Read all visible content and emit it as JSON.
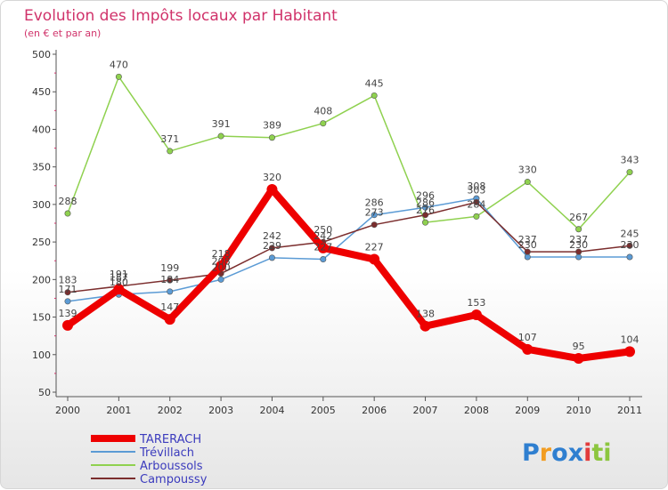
{
  "chart_data": {
    "type": "line",
    "title": "Evolution des Impôts locaux par Habitant",
    "subtitle": "(en € et par an)",
    "xlabel": "",
    "ylabel": "",
    "x": [
      "2000",
      "2001",
      "2002",
      "2003",
      "2004",
      "2005",
      "2006",
      "2007",
      "2008",
      "2009",
      "2010",
      "2011"
    ],
    "ylim": [
      50,
      500
    ],
    "yticks": [
      50,
      100,
      150,
      200,
      250,
      300,
      350,
      400,
      450,
      500
    ],
    "series": [
      {
        "name": "Arboussols",
        "color": "#8fd14f",
        "values": [
          288,
          470,
          371,
          391,
          389,
          408,
          445,
          276,
          284,
          330,
          267,
          343
        ]
      },
      {
        "name": "Trévillach",
        "color": "#5b9bd5",
        "values": [
          171,
          180,
          184,
          200,
          229,
          227,
          286,
          296,
          308,
          230,
          230,
          230
        ]
      },
      {
        "name": "Campoussy",
        "color": "#7b2d2d",
        "values": [
          183,
          191,
          199,
          208,
          242,
          250,
          273,
          286,
          303,
          237,
          237,
          245
        ]
      },
      {
        "name": "TARERACH",
        "color": "#ee0000",
        "values": [
          139,
          187,
          147,
          218,
          320,
          242,
          227,
          138,
          153,
          107,
          95,
          104
        ]
      }
    ],
    "legend_order": [
      "TARERACH",
      "Trévillach",
      "Arboussols",
      "Campoussy"
    ],
    "legend_position": "bottom-left",
    "grid": false
  },
  "logo": {
    "letters": [
      "P",
      "r",
      "o",
      "x",
      "i",
      "t",
      "i"
    ],
    "colors": [
      "#2f7fd0",
      "#f29d22",
      "#2f7fd0",
      "#2f7fd0",
      "#e23b3b",
      "#8cc63f",
      "#8cc63f"
    ]
  }
}
